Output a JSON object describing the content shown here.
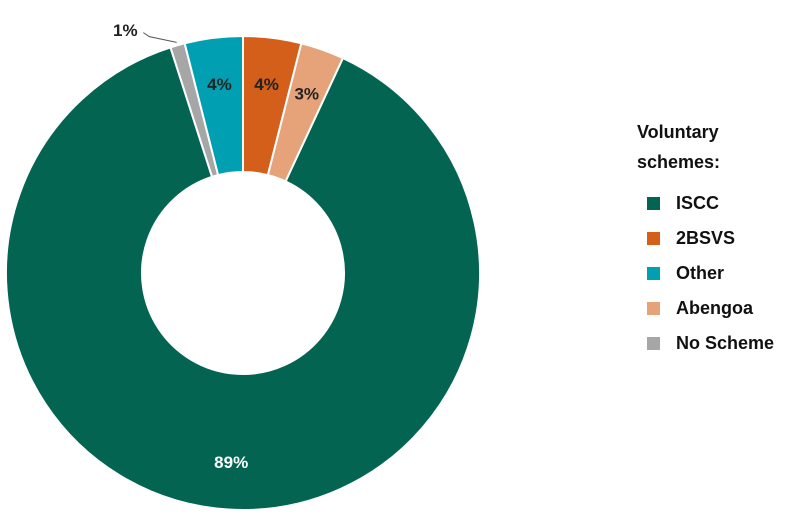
{
  "chart_data": {
    "type": "pie",
    "variant": "donut",
    "slices": [
      {
        "name": "2BSVS",
        "value": 4,
        "label": "4%",
        "color": "#D35F1B"
      },
      {
        "name": "Abengoa",
        "value": 3,
        "label": "3%",
        "color": "#E6A279"
      },
      {
        "name": "ISCC",
        "value": 89,
        "label": "89%",
        "color": "#036551"
      },
      {
        "name": "No Scheme",
        "value": 1,
        "label": "1%",
        "color": "#A6A6A6"
      },
      {
        "name": "Other",
        "value": 4,
        "label": "4%",
        "color": "#00A0B2"
      }
    ],
    "legend": {
      "title": "Voluntary schemes:",
      "placement": "right",
      "items": [
        {
          "name": "ISCC",
          "color": "#036551"
        },
        {
          "name": "2BSVS",
          "color": "#D35F1B"
        },
        {
          "name": "Other",
          "color": "#00A0B2"
        },
        {
          "name": "Abengoa",
          "color": "#E6A279"
        },
        {
          "name": "No Scheme",
          "color": "#A6A6A6"
        }
      ]
    }
  }
}
